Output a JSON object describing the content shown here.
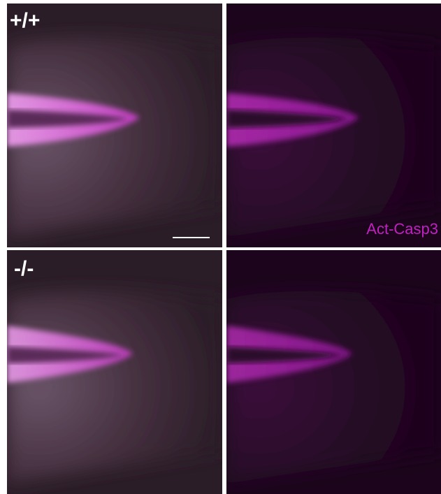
{
  "rows": [
    {
      "genotype": "+/+"
    },
    {
      "genotype": "-/-"
    }
  ],
  "stain": "Act-Casp3"
}
